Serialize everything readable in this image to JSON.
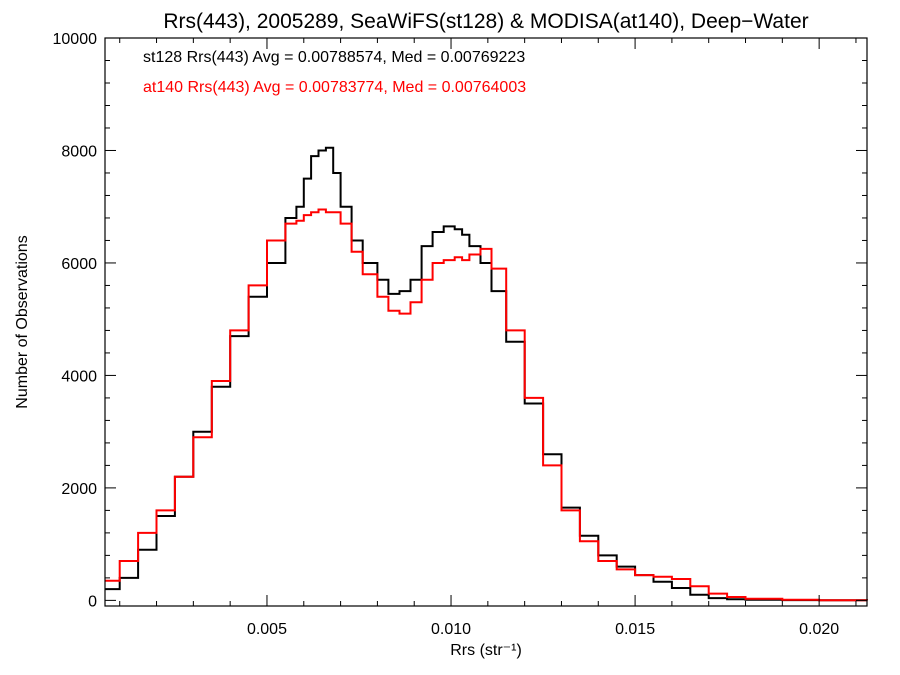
{
  "chart_data": {
    "type": "line",
    "title": "Rrs(443), 2005289, SeaWiFS(st128) & MODISA(at140), Deep−Water",
    "xlabel": "Rrs (str⁻¹)",
    "ylabel": "Number of Observations",
    "xlim": [
      0.0006,
      0.0213
    ],
    "ylim": [
      -100,
      10000
    ],
    "xticks": [
      0.005,
      0.01,
      0.015,
      0.02
    ],
    "xtick_labels": [
      "0.005",
      "0.010",
      "0.015",
      "0.020"
    ],
    "yticks": [
      0,
      2000,
      4000,
      6000,
      8000,
      10000
    ],
    "ytick_labels": [
      "0",
      "2000",
      "4000",
      "6000",
      "8000",
      "10000"
    ],
    "grid": false,
    "annotations": [
      {
        "text": "st128 Rrs(443) Avg = 0.00788574, Med = 0.00769223",
        "color": "#000000"
      },
      {
        "text": "at140 Rrs(443) Avg = 0.00783774, Med = 0.00764003",
        "color": "#ff0000"
      }
    ],
    "series": [
      {
        "color": "#000000",
        "x": [
          0.0006,
          0.001,
          0.0015,
          0.002,
          0.0025,
          0.003,
          0.0035,
          0.004,
          0.0045,
          0.005,
          0.0055,
          0.0058,
          0.006,
          0.0062,
          0.0064,
          0.0066,
          0.0068,
          0.007,
          0.0073,
          0.0076,
          0.008,
          0.0083,
          0.0086,
          0.0089,
          0.0092,
          0.0095,
          0.0098,
          0.0101,
          0.0103,
          0.0105,
          0.0108,
          0.0111,
          0.0115,
          0.012,
          0.0125,
          0.013,
          0.0135,
          0.014,
          0.0145,
          0.015,
          0.0155,
          0.016,
          0.0165,
          0.017,
          0.0175,
          0.018,
          0.019,
          0.02,
          0.0213
        ],
        "values": [
          200,
          400,
          900,
          1500,
          2200,
          3000,
          3800,
          4700,
          5400,
          6000,
          6800,
          7000,
          7500,
          7900,
          8000,
          8050,
          7600,
          7000,
          6400,
          6000,
          5700,
          5450,
          5500,
          5700,
          6300,
          6550,
          6650,
          6600,
          6500,
          6300,
          6000,
          5500,
          4600,
          3500,
          2600,
          1650,
          1150,
          800,
          600,
          450,
          330,
          220,
          100,
          40,
          20,
          10,
          5,
          2,
          0
        ]
      },
      {
        "color": "#ff0000",
        "x": [
          0.0006,
          0.001,
          0.0015,
          0.002,
          0.0025,
          0.003,
          0.0035,
          0.004,
          0.0045,
          0.005,
          0.0055,
          0.0058,
          0.006,
          0.0062,
          0.0064,
          0.0066,
          0.0068,
          0.007,
          0.0073,
          0.0076,
          0.008,
          0.0083,
          0.0086,
          0.0089,
          0.0092,
          0.0095,
          0.0098,
          0.0101,
          0.0103,
          0.0105,
          0.0108,
          0.0111,
          0.0115,
          0.012,
          0.0125,
          0.013,
          0.0135,
          0.014,
          0.0145,
          0.015,
          0.0155,
          0.016,
          0.0165,
          0.017,
          0.0175,
          0.018,
          0.019,
          0.02,
          0.0213
        ],
        "values": [
          350,
          700,
          1200,
          1600,
          2200,
          2900,
          3900,
          4800,
          5600,
          6400,
          6700,
          6750,
          6850,
          6900,
          6950,
          6900,
          6900,
          6700,
          6200,
          5800,
          5400,
          5150,
          5100,
          5300,
          5700,
          6000,
          6050,
          6100,
          6050,
          6150,
          6250,
          5900,
          4800,
          3600,
          2400,
          1600,
          1050,
          700,
          550,
          450,
          420,
          380,
          250,
          120,
          60,
          30,
          10,
          3,
          0
        ]
      }
    ]
  }
}
